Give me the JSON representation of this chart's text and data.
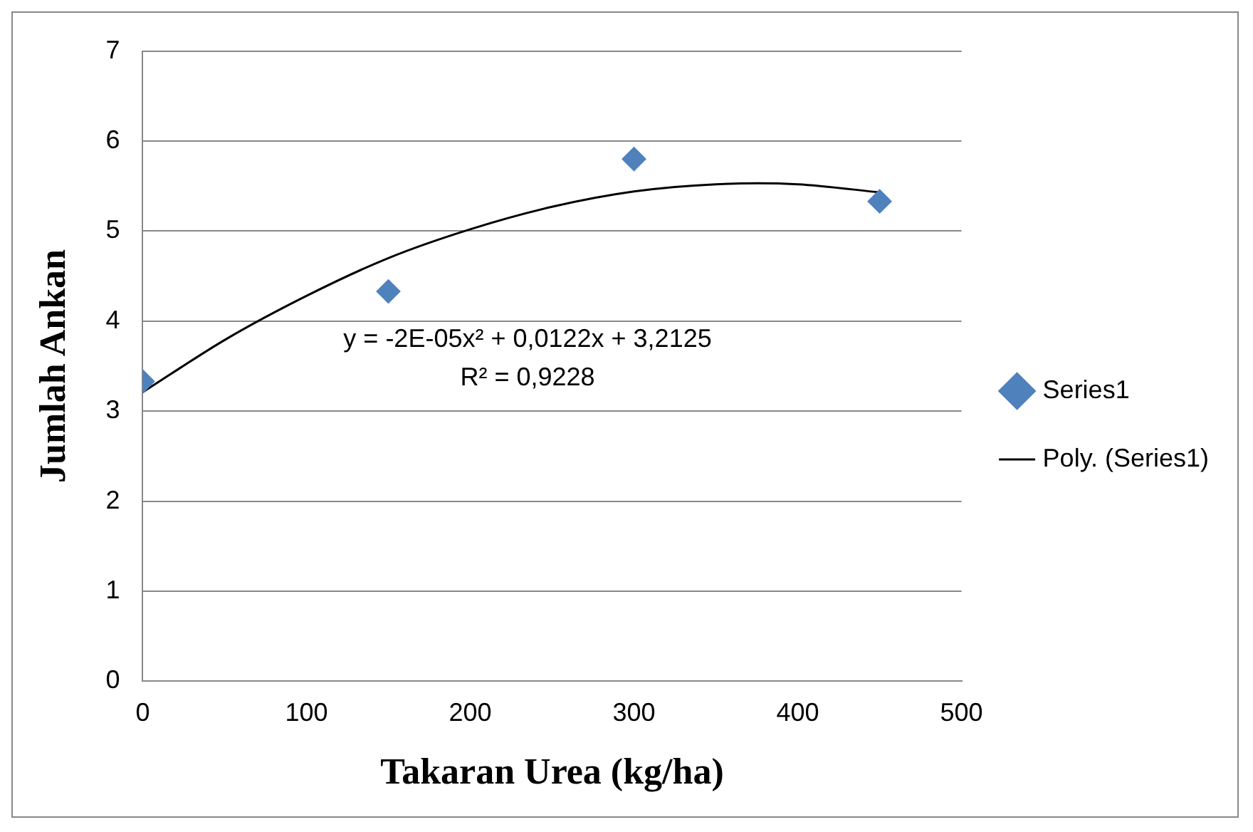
{
  "chart_data": {
    "type": "scatter",
    "xlabel": "Takaran Urea (kg/ha)",
    "ylabel": "Jumlah Ankan",
    "xlim": [
      0,
      500
    ],
    "xticks": [
      0,
      100,
      200,
      300,
      400,
      500
    ],
    "ylim": [
      0,
      7
    ],
    "yticks": [
      0,
      1,
      2,
      3,
      4,
      5,
      6,
      7
    ],
    "grid": "y",
    "legend": "right",
    "annotations": [
      "y = -2E-05x² + 0,0122x + 3,2125",
      "R² = 0,9228"
    ],
    "series": [
      {
        "name": "Series1",
        "type": "scatter",
        "marker": "diamond",
        "color": "#4f81bd",
        "x": [
          0,
          150,
          300,
          450
        ],
        "values": [
          3.33,
          4.33,
          5.8,
          5.33
        ]
      },
      {
        "name": "Poly. (Series1)",
        "type": "line",
        "marker": "none",
        "color": "#000000",
        "line_style": "solid",
        "x": [
          0,
          50,
          100,
          150,
          200,
          250,
          300,
          350,
          400,
          450
        ],
        "values": [
          3.21,
          3.79,
          4.28,
          4.7,
          5.02,
          5.27,
          5.44,
          5.52,
          5.52,
          5.43
        ]
      }
    ]
  }
}
